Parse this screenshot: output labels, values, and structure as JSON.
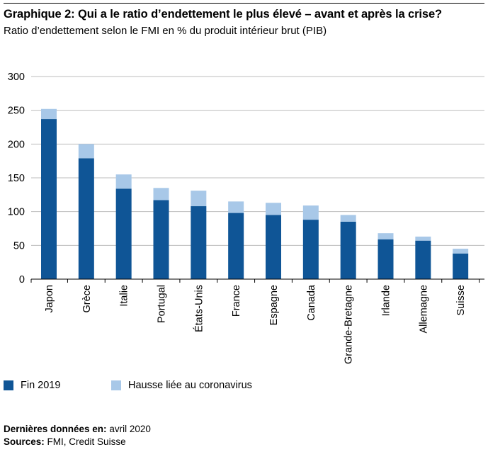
{
  "header": {
    "title": "Graphique 2: Qui a le ratio d’endettement le plus élevé – avant et après la crise?",
    "subtitle": "Ratio d’endettement selon le FMI en % du produit intérieur brut (PIB)"
  },
  "chart_data": {
    "type": "bar",
    "stacked": true,
    "categories": [
      "Japon",
      "Grèce",
      "Italie",
      "Portugal",
      "États-Unis",
      "France",
      "Espagne",
      "Canada",
      "Grande-Bretagne",
      "Irlande",
      "Allemagne",
      "Suisse"
    ],
    "series": [
      {
        "name": "Fin 2019",
        "color": "#0f5596",
        "values": [
          237,
          179,
          134,
          117,
          108,
          98,
          95,
          88,
          85,
          59,
          57,
          38
        ]
      },
      {
        "name": "Hausse liée au coronavirus",
        "color": "#a8c8e8",
        "values": [
          15,
          21,
          21,
          18,
          23,
          17,
          18,
          21,
          10,
          9,
          6,
          7
        ]
      }
    ],
    "ylim": [
      0,
      300
    ],
    "yticks": [
      0,
      50,
      100,
      150,
      200,
      250,
      300
    ],
    "grid": true,
    "legend_position": "bottom-left"
  },
  "footer": {
    "data_label": "Dernières données en:",
    "data_value": "avril 2020",
    "sources_label": "Sources:",
    "sources_value": "FMI, Credit Suisse"
  }
}
